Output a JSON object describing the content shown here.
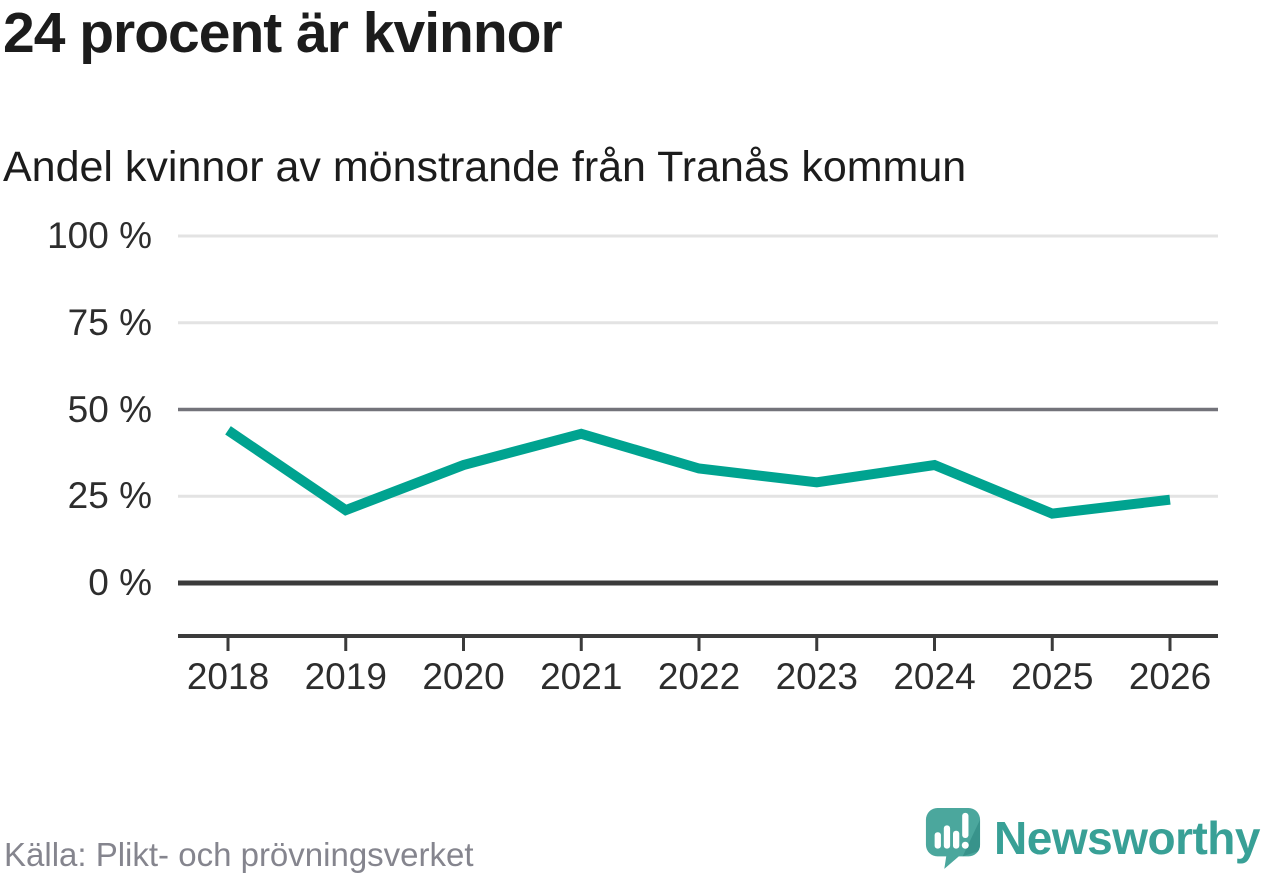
{
  "header": {
    "title": "24 procent är kvinnor",
    "subtitle": "Andel kvinnor av mönstrande från Tranås kommun"
  },
  "chart_data": {
    "type": "line",
    "title": "24 procent är kvinnor",
    "subtitle": "Andel kvinnor av mönstrande från Tranås kommun",
    "categories": [
      "2018",
      "2019",
      "2020",
      "2021",
      "2022",
      "2023",
      "2024",
      "2025",
      "2026"
    ],
    "series": [
      {
        "name": "Andel kvinnor av mönstrande, Tranås kommun",
        "values": [
          44,
          21,
          34,
          43,
          33,
          29,
          34,
          20,
          24
        ]
      }
    ],
    "unit": "%",
    "ylim": [
      0,
      100
    ],
    "y_ticks": [
      {
        "value": 100,
        "label": "100 %",
        "style": "light"
      },
      {
        "value": 75,
        "label": "75 %",
        "style": "light"
      },
      {
        "value": 50,
        "label": "50 %",
        "style": "medium"
      },
      {
        "value": 25,
        "label": "25 %",
        "style": "light"
      },
      {
        "value": 0,
        "label": "0 %",
        "style": "strong"
      }
    ],
    "grid": "horizontal",
    "legend_position": "none",
    "line_color": "#00a390"
  },
  "footer": {
    "source": "Källa: Plikt- och prövningsverket",
    "brand": "Newsworthy"
  },
  "colors": {
    "accent_teal": "#00a390",
    "logo_teal": "#4ba79d",
    "logo_teal_dark": "#38938b",
    "brand_text_teal": "#38a096",
    "grid_light": "#e3e3e3",
    "grid_medium": "#73737a",
    "axis_dark": "#3b3b3b",
    "text_dark": "#1c1c1c",
    "text_muted": "#85858e"
  }
}
